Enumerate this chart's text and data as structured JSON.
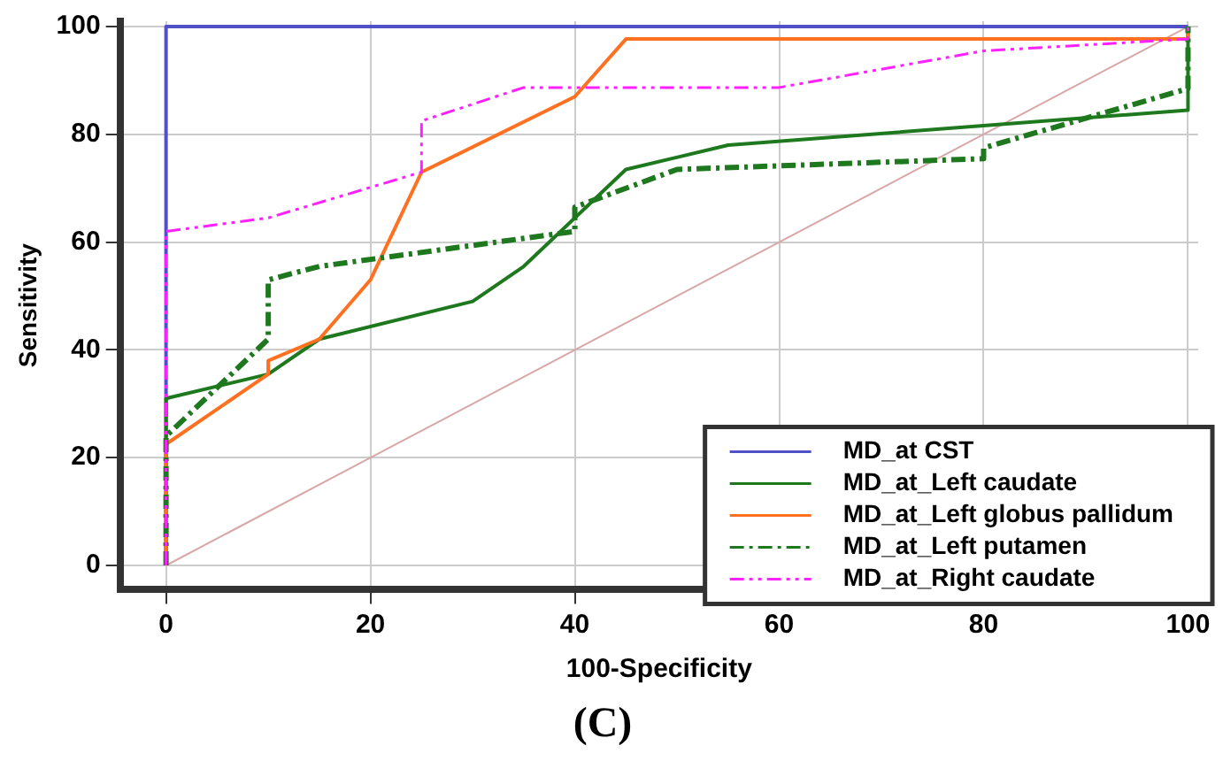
{
  "chart_data": {
    "type": "line",
    "title": "(C)",
    "xlabel": "100-Specificity",
    "ylabel": "Sensitivity",
    "xlim": [
      -4.5,
      101
    ],
    "ylim": [
      -4.5,
      101
    ],
    "xticks": [
      0,
      20,
      40,
      60,
      80,
      100
    ],
    "yticks": [
      0,
      20,
      40,
      60,
      80,
      100
    ],
    "grid": true,
    "legend": "bottom right",
    "marker": "none",
    "series": [
      {
        "name": "MD_at CST",
        "color": "#5050c8",
        "line_style": "solid",
        "x": [
          0,
          0,
          100
        ],
        "values": [
          0,
          100,
          100
        ]
      },
      {
        "name": "MD_at_Left caudate",
        "color": "#1e781e",
        "line_style": "solid",
        "x": [
          0,
          0,
          10,
          15,
          30,
          35,
          45,
          55,
          100,
          100
        ],
        "values": [
          0,
          31,
          35.5,
          42,
          49,
          55.5,
          73.5,
          78,
          84.5,
          100
        ]
      },
      {
        "name": "MD_at_Left globus pallidum",
        "color": "#ff7020",
        "line_style": "solid",
        "x": [
          0,
          0,
          10,
          10,
          15,
          20,
          25,
          40,
          45,
          100,
          100
        ],
        "values": [
          0,
          22.5,
          35.5,
          38,
          42,
          53,
          73,
          87,
          97.7,
          97.7,
          100
        ]
      },
      {
        "name": "MD_at_Left putamen",
        "color": "#1e781e",
        "line_style": "dashdot",
        "x": [
          0,
          0,
          10,
          10,
          15,
          40,
          40,
          50,
          80,
          80,
          100,
          100
        ],
        "values": [
          0,
          24,
          42,
          53,
          55.5,
          62,
          66.5,
          73.5,
          75.5,
          77.5,
          88.5,
          100
        ]
      },
      {
        "name": "MD_at_Right caudate",
        "color": "#ff20ff",
        "line_style": "dashdotdot",
        "x": [
          0,
          0,
          10,
          25,
          25,
          35,
          60,
          80,
          100,
          100
        ],
        "values": [
          0,
          62,
          64.5,
          73,
          82.5,
          88.7,
          88.7,
          95.5,
          97.7,
          100
        ]
      },
      {
        "color": "#d8a8a8",
        "line_style": "solid",
        "x": [
          0,
          100
        ],
        "values": [
          0,
          100
        ]
      }
    ]
  }
}
